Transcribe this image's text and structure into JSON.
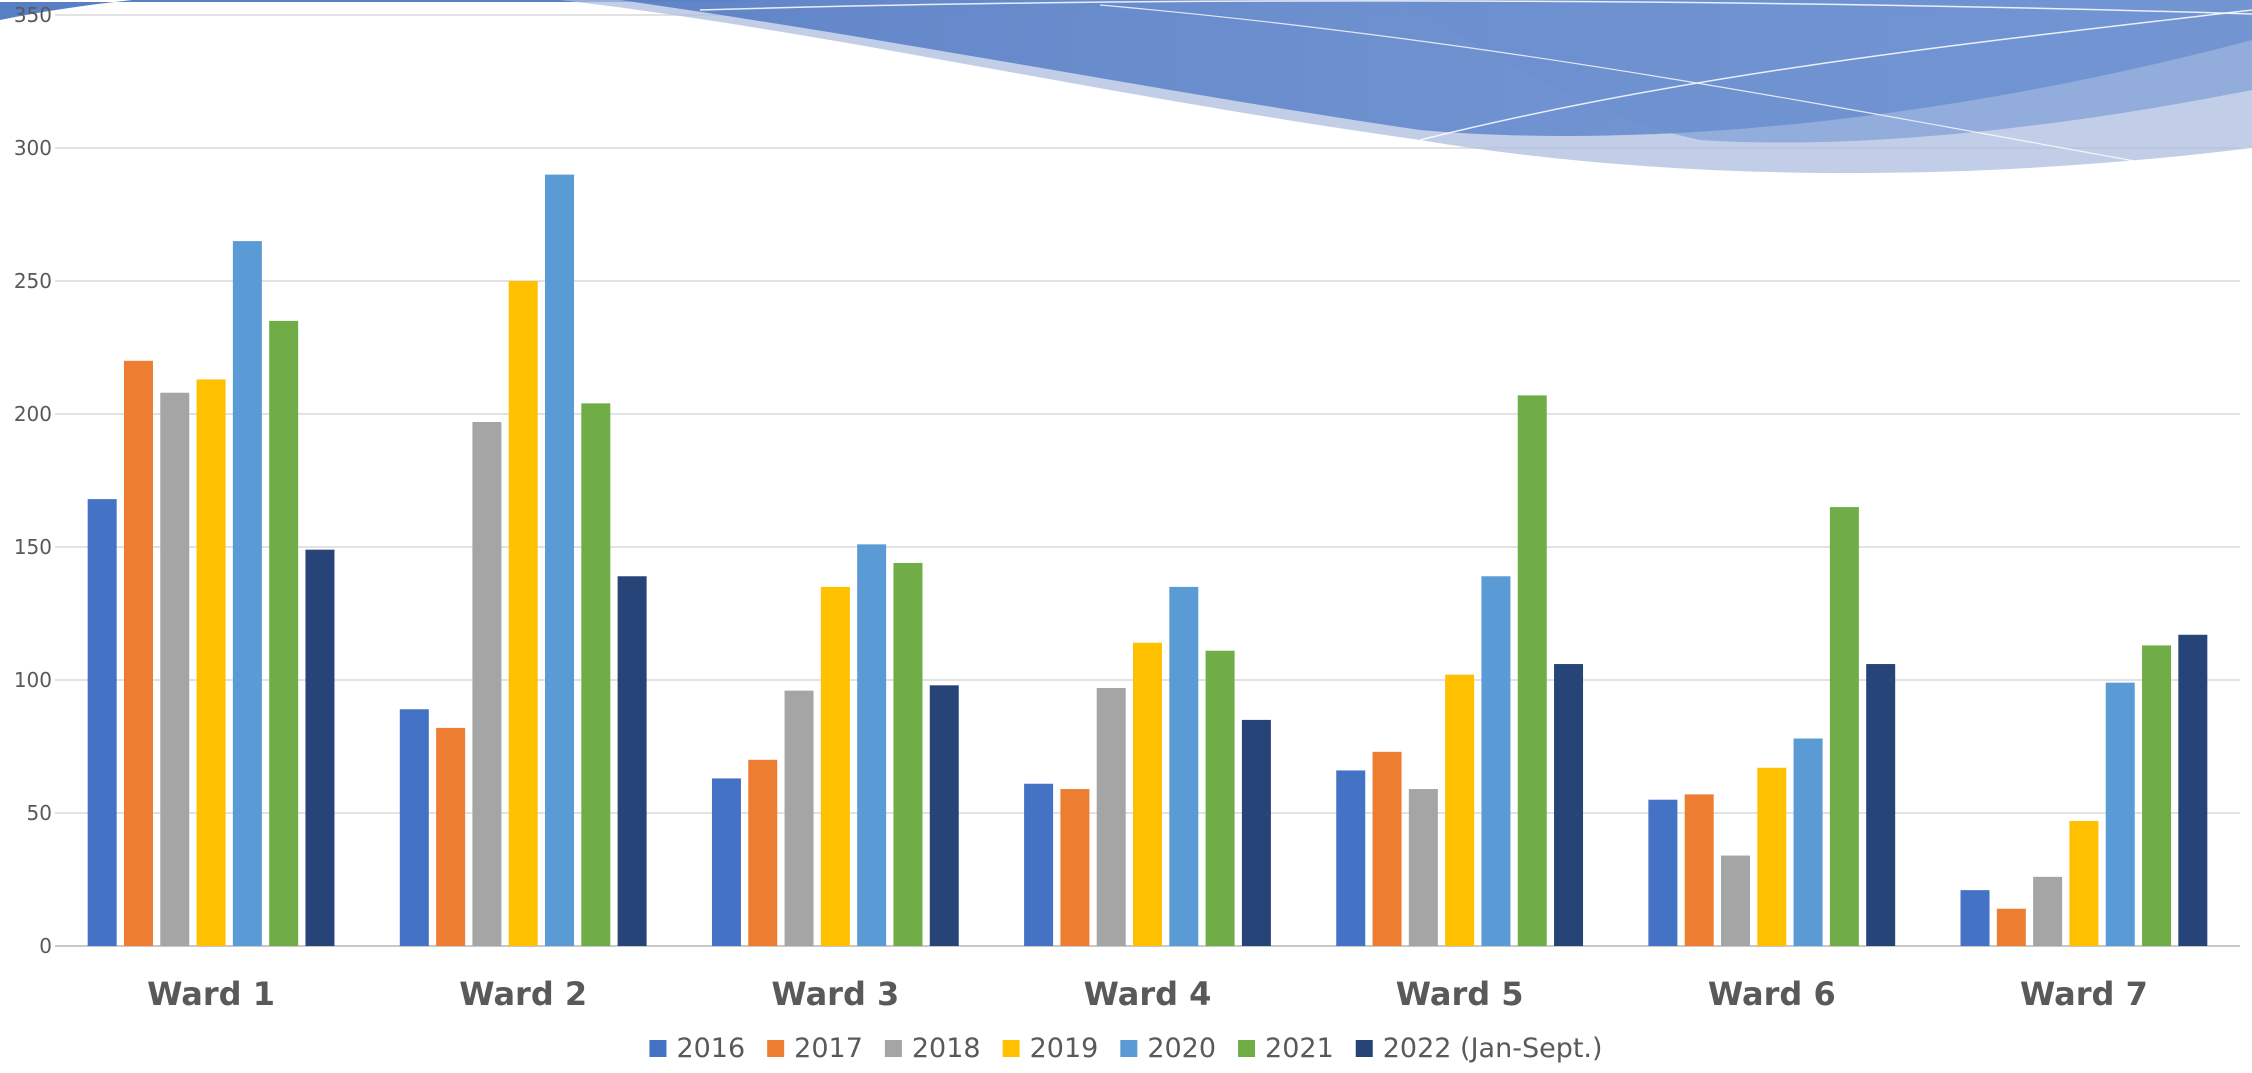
{
  "chart_data": {
    "type": "bar",
    "title": "",
    "xlabel": "",
    "ylabel": "",
    "ylim": [
      0,
      350
    ],
    "yticks": [
      0,
      50,
      100,
      150,
      200,
      250,
      300,
      350
    ],
    "grid": true,
    "legend_position": "bottom",
    "categories": [
      "Ward 1",
      "Ward 2",
      "Ward 3",
      "Ward 4",
      "Ward 5",
      "Ward 6",
      "Ward 7"
    ],
    "series": [
      {
        "name": "2016",
        "color": "#4472c4",
        "values": [
          168,
          89,
          63,
          61,
          66,
          55,
          21
        ]
      },
      {
        "name": "2017",
        "color": "#ed7d31",
        "values": [
          220,
          82,
          70,
          59,
          73,
          57,
          14
        ]
      },
      {
        "name": "2018",
        "color": "#a5a5a5",
        "values": [
          208,
          197,
          96,
          97,
          59,
          34,
          26
        ]
      },
      {
        "name": "2019",
        "color": "#ffc000",
        "values": [
          213,
          250,
          135,
          114,
          102,
          67,
          47
        ]
      },
      {
        "name": "2020",
        "color": "#5b9bd5",
        "values": [
          265,
          290,
          151,
          135,
          139,
          78,
          99
        ]
      },
      {
        "name": "2021",
        "color": "#70ad47",
        "values": [
          235,
          204,
          144,
          111,
          207,
          165,
          113
        ]
      },
      {
        "name": "2022 (Jan-Sept.)",
        "color": "#264478",
        "values": [
          149,
          139,
          98,
          85,
          106,
          106,
          117
        ]
      }
    ]
  }
}
